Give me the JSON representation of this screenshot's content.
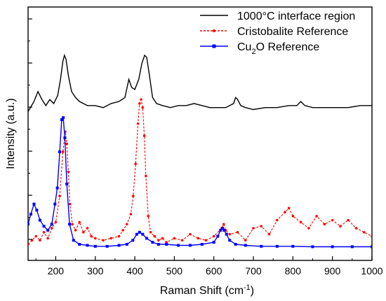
{
  "chart_data": {
    "type": "line",
    "title": "",
    "xlabel": "Raman Shift (cm",
    "xlabel_sup": "-1",
    "xlabel_end": ")",
    "ylabel": "Intensity (a.u.)",
    "xlim": [
      130,
      1000
    ],
    "ylim": [
      0,
      100
    ],
    "xticks": [
      200,
      300,
      400,
      500,
      600,
      700,
      800,
      900,
      1000
    ],
    "y_tick_labels_shown": false,
    "grid": false,
    "legend_position": "top-right",
    "series": [
      {
        "name": "1000°C interface region",
        "legend": {
          "pre": "1000°C interface region",
          "sub": "",
          "post": ""
        },
        "color": "#000000",
        "style": "solid",
        "marker": "none",
        "x": [
          130,
          145,
          155,
          165,
          175,
          185,
          195,
          205,
          212,
          218,
          222,
          226,
          232,
          240,
          250,
          260,
          280,
          300,
          320,
          340,
          360,
          375,
          385,
          392,
          400,
          410,
          418,
          425,
          430,
          437,
          445,
          455,
          470,
          490,
          510,
          530,
          550,
          570,
          590,
          610,
          630,
          650,
          655,
          660,
          668,
          680,
          700,
          730,
          760,
          790,
          810,
          820,
          830,
          850,
          880,
          910,
          940,
          970,
          1000
        ],
        "y": [
          68,
          73,
          78,
          74,
          71,
          74,
          72,
          76,
          84,
          93,
          96,
          94,
          86,
          78,
          75,
          73,
          71,
          71,
          70,
          72,
          73,
          75,
          84,
          80,
          79,
          84,
          92,
          96,
          95,
          86,
          75,
          72,
          71,
          70,
          71,
          71,
          72,
          71,
          70,
          70,
          70,
          72,
          75,
          74,
          71,
          70,
          69,
          70,
          70,
          71,
          71,
          73,
          71,
          70,
          70,
          70,
          70,
          71,
          71
        ]
      },
      {
        "name": "Cristobalite Reference",
        "legend": {
          "pre": "Cristobalite Reference",
          "sub": "",
          "post": ""
        },
        "color": "#ff0000",
        "style": "dashed",
        "marker": "circle",
        "x": [
          130,
          140,
          150,
          160,
          170,
          180,
          190,
          200,
          210,
          218,
          224,
          228,
          232,
          236,
          242,
          250,
          260,
          270,
          280,
          290,
          300,
          320,
          340,
          360,
          370,
          380,
          390,
          396,
          402,
          408,
          412,
          416,
          420,
          424,
          428,
          434,
          440,
          450,
          460,
          470,
          480,
          500,
          520,
          540,
          560,
          580,
          600,
          620,
          625,
          630,
          640,
          660,
          680,
          700,
          720,
          740,
          760,
          780,
          790,
          800,
          820,
          840,
          860,
          880,
          900,
          920,
          940,
          960,
          980,
          1000
        ],
        "y": [
          2,
          4,
          6,
          4,
          8,
          5,
          10,
          13,
          26,
          48,
          58,
          52,
          38,
          22,
          12,
          9,
          13,
          8,
          10,
          6,
          5,
          4,
          5,
          6,
          9,
          12,
          17,
          26,
          42,
          62,
          72,
          74,
          70,
          56,
          36,
          16,
          8,
          6,
          4,
          5,
          3,
          5,
          4,
          7,
          5,
          4,
          6,
          10,
          12,
          9,
          7,
          8,
          4,
          10,
          11,
          7,
          14,
          18,
          20,
          16,
          13,
          10,
          16,
          12,
          14,
          11,
          14,
          10,
          8,
          6
        ]
      },
      {
        "name": "Cu2O Reference",
        "legend": {
          "pre": "Cu",
          "sub": "2",
          "post": "O Reference"
        },
        "color": "#0000ff",
        "style": "solid",
        "marker": "square",
        "x": [
          130,
          137,
          145,
          152,
          160,
          170,
          180,
          190,
          198,
          204,
          210,
          215,
          219,
          223,
          228,
          235,
          245,
          260,
          280,
          300,
          330,
          360,
          380,
          395,
          405,
          412,
          420,
          430,
          445,
          460,
          480,
          510,
          540,
          570,
          600,
          610,
          617,
          622,
          626,
          632,
          640,
          655,
          680,
          720,
          760,
          800,
          850,
          900,
          950,
          1000
        ],
        "y": [
          12,
          17,
          22,
          19,
          14,
          11,
          9,
          12,
          22,
          30,
          48,
          64,
          65,
          55,
          32,
          12,
          4,
          2,
          1.5,
          1,
          1,
          1.5,
          2,
          4,
          7,
          8,
          7,
          5,
          3,
          2,
          2,
          1.5,
          1.5,
          2,
          3,
          6,
          9,
          10,
          9,
          7,
          4,
          2,
          1.5,
          1,
          1,
          1,
          0.8,
          0.8,
          0.8,
          0.8
        ]
      }
    ]
  }
}
